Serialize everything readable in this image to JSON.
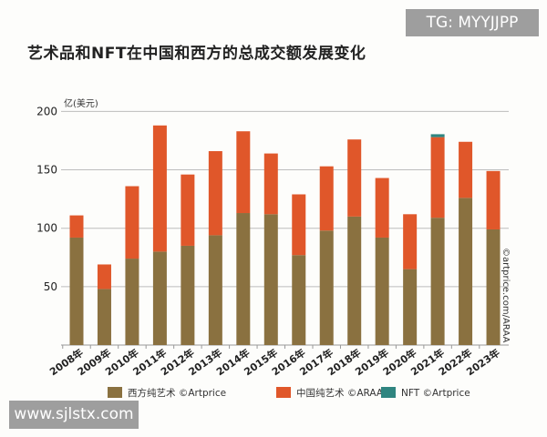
{
  "title": "艺术品和NFT在中国和西方的总成交额发展变化",
  "watermarks": {
    "top_right": "TG: MYYJJPP",
    "bottom_left": "www.sjlstx.com"
  },
  "chart_data": {
    "type": "bar",
    "stacked": true,
    "title": "艺术品和NFT在中国和西方的总成交额发展变化",
    "ylabel": "亿(美元)",
    "xlabel": "",
    "ylim": [
      0,
      200
    ],
    "yticks": [
      50,
      100,
      150,
      200
    ],
    "grid": true,
    "legend_position": "bottom",
    "source_note": "©artprice.com/ARAA",
    "categories": [
      "2008年",
      "2009年",
      "2010年",
      "2011年",
      "2012年",
      "2013年",
      "2014年",
      "2015年",
      "2016年",
      "2017年",
      "2018年",
      "2019年",
      "2020年",
      "2021年",
      "2022年",
      "2023年"
    ],
    "series": [
      {
        "name": "西方纯艺术 ©Artprice",
        "color": "#8a7140",
        "values": [
          92,
          48,
          74,
          80,
          85,
          94,
          113,
          112,
          77,
          98,
          110,
          92,
          65,
          109,
          126,
          99
        ]
      },
      {
        "name": "中国纯艺术 ©ARAA",
        "color": "#e0572a",
        "values": [
          19,
          21,
          62,
          108,
          61,
          72,
          70,
          52,
          52,
          55,
          66,
          51,
          47,
          69,
          48,
          50
        ]
      },
      {
        "name": "NFT ©Artprice",
        "color": "#2f8580",
        "values": [
          0,
          0,
          0,
          0,
          0,
          0,
          0,
          0,
          0,
          0,
          0,
          0,
          0,
          2.5,
          0,
          0
        ]
      }
    ]
  }
}
